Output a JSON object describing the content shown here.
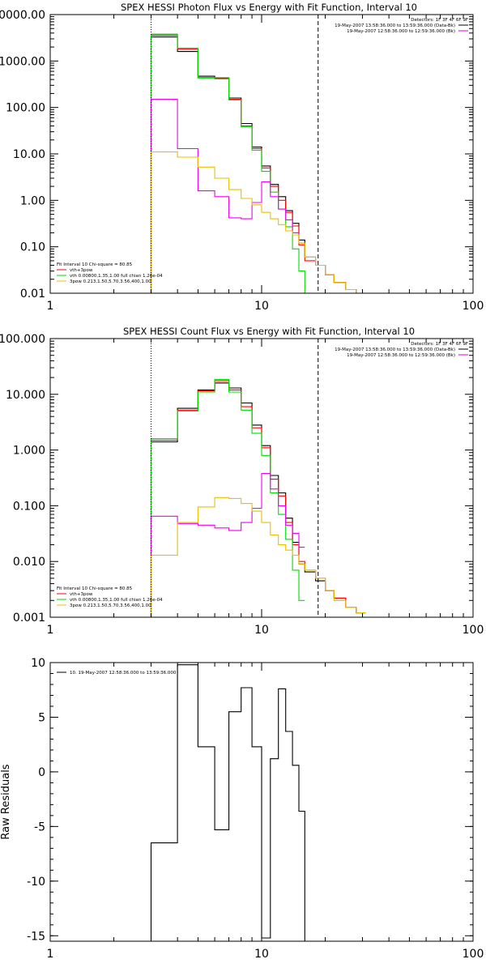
{
  "colors": {
    "data": "#000000",
    "thick_thin": "#ff0000",
    "vth": "#00dd00",
    "bpow": "#ee00ee",
    "bpow2": "#e8c000",
    "bkg": "#dd00dd"
  },
  "chart_data": [
    {
      "type": "line",
      "title": "SPEX HESSI Photon Flux vs Energy with Fit Function, Interval 10",
      "xscale": "log",
      "yscale": "log",
      "xlim": [
        1,
        100
      ],
      "ylim": [
        0.01,
        10000
      ],
      "x_ticks": [
        1,
        10,
        100
      ],
      "x_tick_labels": [
        "1",
        "10",
        "100"
      ],
      "y_ticks": [
        0.01,
        0.1,
        1,
        10,
        100,
        1000,
        10000
      ],
      "y_tick_labels": [
        "0.01",
        "0.10",
        "1.00",
        "10.00",
        "100.00",
        "1000.00",
        "10000.00"
      ],
      "ylabel": "",
      "xlabel": "",
      "energy_low_line": 3,
      "energy_high_line": 18.5,
      "top_legend": [
        {
          "text": "Detectors: 1F 3F 4F 6F 9F",
          "color": "",
          "line": ""
        },
        {
          "text": "19-May-2007 13:58:36.000 to 13:59:36.000 (Data-Bk)",
          "color": "data",
          "line": "solid"
        },
        {
          "text": "19-May-2007 12:58:36.000 to 12:59:36.000 (Bk)",
          "color": "bkg",
          "line": "solid"
        }
      ],
      "fit_legend": [
        {
          "text": "Fit Interval 10   Chi-square = 80.85",
          "color": "",
          "line": ""
        },
        {
          "text": "vth+3pow",
          "color": "thick_thin",
          "line": "solid"
        },
        {
          "text": "vth 0.00800,1.35,1.00  full chian 1.26e-04",
          "color": "vth",
          "line": "solid"
        },
        {
          "text": "3pow 0.213,1.50,5.70,3.56,400,1.00",
          "color": "bpow2",
          "line": "solid"
        }
      ],
      "edges": [
        3,
        4,
        5,
        6,
        7,
        8,
        9,
        10,
        11,
        12,
        13,
        14,
        15,
        16,
        18,
        20,
        22,
        25,
        28,
        31
      ],
      "series": [
        {
          "color_key": "data",
          "values": [
            3300,
            1600,
            470,
            420,
            160,
            45,
            14,
            5.5,
            2.2,
            1.2,
            0.6,
            0.32,
            0.14,
            0.06,
            0.04,
            0.025,
            0.017,
            0.012,
            0.01
          ]
        },
        {
          "color_key": "thick_thin",
          "values": [
            3600,
            1800,
            440,
            430,
            150,
            40,
            13,
            5.0,
            2.0,
            1.0,
            0.55,
            0.28,
            0.11,
            0.05,
            0.04,
            0.025,
            0.017,
            0.012,
            0.01
          ]
        },
        {
          "color_key": "vth",
          "values": [
            3800,
            1900,
            430,
            440,
            145,
            38,
            12,
            4.2,
            1.5,
            0.65,
            0.27,
            0.09,
            0.03,
            0.01
          ]
        },
        {
          "color_key": "bpow",
          "values": [
            150,
            13,
            1.6,
            1.2,
            0.42,
            0.4,
            0.9,
            2.5,
            1.2,
            0.65,
            0.38,
            0.2,
            0.12
          ]
        },
        {
          "color_key": "bpow2",
          "values": [
            11,
            8.5,
            5.2,
            3.0,
            1.7,
            1.1,
            0.8,
            0.55,
            0.4,
            0.3,
            0.22,
            0.18,
            0.12,
            0.06,
            0.04,
            0.025,
            0.017,
            0.012,
            0.01
          ]
        }
      ]
    },
    {
      "type": "line",
      "title": "SPEX HESSI Count Flux vs Energy with Fit Function, Interval 10",
      "xscale": "log",
      "yscale": "log",
      "xlim": [
        1,
        100
      ],
      "ylim": [
        0.001,
        100
      ],
      "x_ticks": [
        1,
        10,
        100
      ],
      "x_tick_labels": [
        "1",
        "10",
        "100"
      ],
      "y_ticks": [
        0.001,
        0.01,
        0.1,
        1,
        10,
        100
      ],
      "y_tick_labels": [
        "0.001",
        "0.010",
        "0.100",
        "1.000",
        "10.000",
        "100.000"
      ],
      "ylabel": "",
      "xlabel": "",
      "energy_low_line": 3,
      "energy_high_line": 18.5,
      "top_legend": [
        {
          "text": "Detectors: 1F 3F 4F 6F 9F",
          "color": "",
          "line": ""
        },
        {
          "text": "19-May-2007 13:58:36.000 to 13:59:36.000 (Data-Bk)",
          "color": "data",
          "line": "solid"
        },
        {
          "text": "19-May-2007 12:58:36.000 to 12:59:36.000 (Bk)",
          "color": "bkg",
          "line": "solid"
        }
      ],
      "fit_legend": [
        {
          "text": "Fit Interval 10   Chi-square = 80.85",
          "color": "",
          "line": ""
        },
        {
          "text": "vth+3pow",
          "color": "thick_thin",
          "line": "solid"
        },
        {
          "text": "vth 0.00800,1.35,1.00  full chian 1.26e-04",
          "color": "vth",
          "line": "solid"
        },
        {
          "text": "3pow 0.213,1.50,5.70,3.56,400,1.00",
          "color": "bpow2",
          "line": "solid"
        }
      ],
      "edges": [
        3,
        4,
        5,
        6,
        7,
        8,
        9,
        10,
        11,
        12,
        13,
        14,
        15,
        16,
        18,
        20,
        22,
        25,
        28,
        31
      ],
      "series": [
        {
          "color_key": "data",
          "values": [
            1.4,
            5.6,
            12,
            16,
            13,
            7,
            2.8,
            1.2,
            0.35,
            0.17,
            0.06,
            0.022,
            0.009,
            0.0065,
            0.0045,
            0.003,
            0.0022,
            0.0015,
            0.0012
          ]
        },
        {
          "color_key": "thick_thin",
          "values": [
            1.5,
            5.2,
            11.5,
            17.5,
            12,
            6,
            2.5,
            1.1,
            0.3,
            0.15,
            0.05,
            0.02,
            0.01,
            0.007,
            0.005,
            0.003,
            0.0022,
            0.0015,
            0.0012
          ]
        },
        {
          "color_key": "vth",
          "values": [
            1.6,
            5.0,
            11,
            18.5,
            11,
            5.2,
            2.0,
            0.8,
            0.17,
            0.07,
            0.025,
            0.007,
            0.002
          ]
        },
        {
          "color_key": "bpow",
          "values": [
            0.065,
            0.048,
            0.045,
            0.04,
            0.036,
            0.05,
            0.09,
            0.38,
            0.2,
            0.1,
            0.045,
            0.032,
            0.018
          ]
        },
        {
          "color_key": "bpow2",
          "values": [
            0.013,
            0.05,
            0.095,
            0.14,
            0.135,
            0.11,
            0.08,
            0.05,
            0.03,
            0.02,
            0.016,
            0.013,
            0.009,
            0.007,
            0.005,
            0.003,
            0.002,
            0.0015,
            0.0012
          ]
        }
      ]
    },
    {
      "type": "line",
      "title": "",
      "xscale": "log",
      "yscale": "linear",
      "xlim": [
        1,
        100
      ],
      "ylim": [
        -15.5,
        10
      ],
      "x_ticks": [
        1,
        10,
        100
      ],
      "x_tick_labels": [
        "1",
        "10",
        "100"
      ],
      "y_ticks": [
        -15,
        -10,
        -5,
        0,
        5,
        10
      ],
      "y_tick_labels": [
        "-15",
        "-10",
        "-5",
        "0",
        "5",
        "10"
      ],
      "ylabel": "Raw Residuals",
      "xlabel": "",
      "top_legend": [
        {
          "text": "10. 19-May-2007 12:58:36.000 to 13:59:36.000",
          "color": "data",
          "line": "solid"
        }
      ],
      "edges": [
        3,
        4,
        5,
        6,
        7,
        8,
        9,
        10,
        11,
        12,
        13,
        14,
        15,
        16,
        18
      ],
      "series": [
        {
          "color_key": "data",
          "values": [
            -6.5,
            9.8,
            2.3,
            -5.3,
            5.5,
            7.7,
            2.3,
            -15.2,
            1.2,
            7.6,
            3.7,
            0.6,
            -3.6,
            -15.5
          ]
        }
      ]
    }
  ]
}
